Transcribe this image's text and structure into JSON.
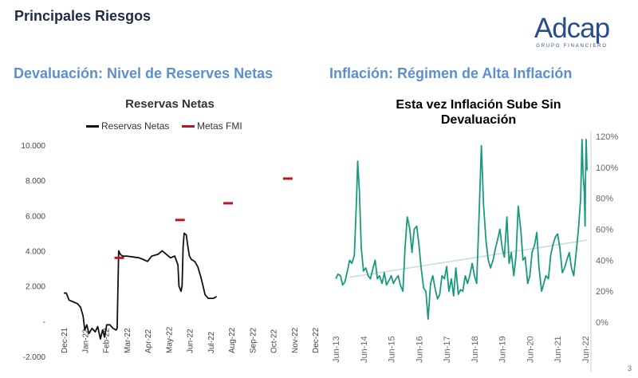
{
  "page": {
    "title": "Principales Riesgos",
    "logo_text": "Adcap",
    "logo_subtitle": "GRUPO FINANCIERO",
    "page_number": "3"
  },
  "sections": {
    "left_heading": "Devaluación: Nivel de Reserves Netas",
    "right_heading": "Inflación: Régimen de Alta Inflación"
  },
  "colors": {
    "reserves_line": "#111111",
    "imf_target": "#c0141e",
    "inflation_line": "#1a9a7c",
    "trend_line": "#bfe0d6",
    "heading_blue": "#5b8fd0"
  },
  "chart_data": [
    {
      "type": "line",
      "title": "Reservas Netas",
      "legend": [
        "Reservas Netas",
        "Metas FMI"
      ],
      "ylim": [
        -2000,
        10000
      ],
      "yticks": [
        -2000,
        0,
        2000,
        4000,
        6000,
        8000,
        10000
      ],
      "ytick_labels": [
        "-2.000",
        "-",
        "2.000",
        "4.000",
        "6.000",
        "8.000",
        "10.000"
      ],
      "xlim_months": [
        0,
        12
      ],
      "xticks": [
        0,
        1,
        2,
        3,
        4,
        5,
        6,
        7,
        8,
        9,
        10,
        11,
        12
      ],
      "xtick_labels": [
        "Dec-21",
        "Jan-22",
        "Feb-22",
        "Mar-22",
        "Apr-22",
        "May-22",
        "Jun-22",
        "Jul-22",
        "Aug-22",
        "Sep-22",
        "Oct-22",
        "Nov-22",
        "Dec-22"
      ],
      "series": [
        {
          "name": "Reservas Netas",
          "points": [
            [
              0.0,
              1600
            ],
            [
              0.12,
              1600
            ],
            [
              0.25,
              1200
            ],
            [
              0.45,
              1100
            ],
            [
              0.65,
              1000
            ],
            [
              0.8,
              800
            ],
            [
              0.92,
              300
            ],
            [
              1.0,
              -500
            ],
            [
              1.1,
              -200
            ],
            [
              1.2,
              -700
            ],
            [
              1.35,
              -400
            ],
            [
              1.5,
              -600
            ],
            [
              1.62,
              -300
            ],
            [
              1.75,
              -1000
            ],
            [
              1.85,
              -500
            ],
            [
              1.95,
              -900
            ],
            [
              2.05,
              -200
            ],
            [
              2.2,
              -200
            ],
            [
              2.35,
              -400
            ],
            [
              2.5,
              -500
            ],
            [
              2.55,
              -400
            ],
            [
              2.62,
              4000
            ],
            [
              2.7,
              3800
            ],
            [
              2.8,
              3700
            ],
            [
              3.0,
              3700
            ],
            [
              3.3,
              3650
            ],
            [
              3.6,
              3600
            ],
            [
              3.8,
              3500
            ],
            [
              4.0,
              3400
            ],
            [
              4.2,
              3700
            ],
            [
              4.5,
              3800
            ],
            [
              4.7,
              4000
            ],
            [
              4.9,
              3800
            ],
            [
              5.1,
              3600
            ],
            [
              5.3,
              3700
            ],
            [
              5.45,
              3200
            ],
            [
              5.5,
              2000
            ],
            [
              5.6,
              1700
            ],
            [
              5.65,
              2000
            ],
            [
              5.7,
              4200
            ],
            [
              5.75,
              5000
            ],
            [
              5.85,
              4900
            ],
            [
              5.92,
              4300
            ],
            [
              6.0,
              3700
            ],
            [
              6.1,
              3500
            ],
            [
              6.25,
              3400
            ],
            [
              6.4,
              3100
            ],
            [
              6.55,
              2500
            ],
            [
              6.65,
              2000
            ],
            [
              6.75,
              1500
            ],
            [
              6.9,
              1300
            ],
            [
              7.0,
              1300
            ],
            [
              7.15,
              1300
            ],
            [
              7.3,
              1400
            ]
          ]
        },
        {
          "name": "Metas FMI",
          "points": [
            [
              2.65,
              3600
            ],
            [
              5.55,
              5750
            ],
            [
              7.85,
              6700
            ],
            [
              10.7,
              8100
            ]
          ]
        }
      ]
    },
    {
      "type": "line",
      "title": "Esta vez Inflación Sube Sin",
      "title_line2": "Devaluación",
      "ylim": [
        0,
        120
      ],
      "yticks": [
        0,
        20,
        40,
        60,
        80,
        100,
        120
      ],
      "ytick_labels": [
        "0%",
        "20%",
        "40%",
        "60%",
        "80%",
        "100%",
        "120%"
      ],
      "xlim_years": [
        0,
        9
      ],
      "xticks": [
        0,
        1,
        2,
        3,
        4,
        5,
        6,
        7,
        8,
        9
      ],
      "xtick_labels": [
        "Jun-13",
        "Jun-14",
        "Jun-15",
        "Jun-16",
        "Jun-17",
        "Jun-18",
        "Jun-19",
        "Jun-20",
        "Jun-21",
        "Jun-22"
      ],
      "series": [
        {
          "name": "Inflación",
          "points": [
            [
              0.0,
              28
            ],
            [
              0.08,
              31
            ],
            [
              0.17,
              30
            ],
            [
              0.25,
              24
            ],
            [
              0.33,
              26
            ],
            [
              0.42,
              33
            ],
            [
              0.5,
              40
            ],
            [
              0.58,
              38
            ],
            [
              0.67,
              43
            ],
            [
              0.75,
              80
            ],
            [
              0.79,
              104
            ],
            [
              0.85,
              85
            ],
            [
              0.92,
              48
            ],
            [
              1.0,
              33
            ],
            [
              1.08,
              35
            ],
            [
              1.17,
              30
            ],
            [
              1.25,
              28
            ],
            [
              1.33,
              34
            ],
            [
              1.42,
              40
            ],
            [
              1.5,
              28
            ],
            [
              1.58,
              30
            ],
            [
              1.67,
              25
            ],
            [
              1.75,
              32
            ],
            [
              1.83,
              24
            ],
            [
              1.92,
              27
            ],
            [
              2.0,
              30
            ],
            [
              2.08,
              25
            ],
            [
              2.17,
              28
            ],
            [
              2.25,
              30
            ],
            [
              2.33,
              24
            ],
            [
              2.42,
              20
            ],
            [
              2.5,
              48
            ],
            [
              2.58,
              68
            ],
            [
              2.67,
              60
            ],
            [
              2.75,
              45
            ],
            [
              2.83,
              60
            ],
            [
              2.92,
              62
            ],
            [
              3.0,
              50
            ],
            [
              3.08,
              35
            ],
            [
              3.17,
              22
            ],
            [
              3.25,
              20
            ],
            [
              3.33,
              2
            ],
            [
              3.42,
              25
            ],
            [
              3.5,
              30
            ],
            [
              3.58,
              22
            ],
            [
              3.67,
              15
            ],
            [
              3.75,
              18
            ],
            [
              3.83,
              30
            ],
            [
              3.92,
              28
            ],
            [
              4.0,
              36
            ],
            [
              4.08,
              20
            ],
            [
              4.17,
              28
            ],
            [
              4.25,
              17
            ],
            [
              4.33,
              35
            ],
            [
              4.42,
              18
            ],
            [
              4.5,
              21
            ],
            [
              4.58,
              20
            ],
            [
              4.67,
              30
            ],
            [
              4.75,
              25
            ],
            [
              4.83,
              30
            ],
            [
              4.92,
              38
            ],
            [
              5.0,
              30
            ],
            [
              5.08,
              25
            ],
            [
              5.17,
              70
            ],
            [
              5.25,
              114
            ],
            [
              5.33,
              75
            ],
            [
              5.42,
              52
            ],
            [
              5.5,
              40
            ],
            [
              5.58,
              35
            ],
            [
              5.67,
              40
            ],
            [
              5.75,
              47
            ],
            [
              5.83,
              53
            ],
            [
              5.92,
              60
            ],
            [
              6.0,
              48
            ],
            [
              6.08,
              42
            ],
            [
              6.17,
              68
            ],
            [
              6.25,
              38
            ],
            [
              6.33,
              45
            ],
            [
              6.42,
              30
            ],
            [
              6.5,
              43
            ],
            [
              6.58,
              75
            ],
            [
              6.67,
              60
            ],
            [
              6.75,
              40
            ],
            [
              6.83,
              42
            ],
            [
              6.92,
              25
            ],
            [
              7.0,
              30
            ],
            [
              7.08,
              45
            ],
            [
              7.17,
              50
            ],
            [
              7.25,
              58
            ],
            [
              7.33,
              35
            ],
            [
              7.42,
              20
            ],
            [
              7.5,
              25
            ],
            [
              7.58,
              30
            ],
            [
              7.67,
              28
            ],
            [
              7.75,
              43
            ],
            [
              7.83,
              50
            ],
            [
              7.92,
              55
            ],
            [
              8.0,
              57
            ],
            [
              8.08,
              48
            ],
            [
              8.17,
              32
            ],
            [
              8.25,
              35
            ],
            [
              8.33,
              40
            ],
            [
              8.42,
              45
            ],
            [
              8.5,
              35
            ],
            [
              8.58,
              30
            ],
            [
              8.67,
              45
            ],
            [
              8.75,
              60
            ],
            [
              8.83,
              80
            ],
            [
              8.88,
              118
            ],
            [
              8.92,
              95
            ],
            [
              8.96,
              85
            ],
            [
              8.99,
              62
            ],
            [
              9.0,
              87
            ],
            [
              9.03,
              118
            ],
            [
              9.06,
              98
            ]
          ]
        },
        {
          "name": "Tendencia",
          "points": [
            [
              0.5,
              29
            ],
            [
              9.06,
              53
            ]
          ]
        }
      ]
    }
  ]
}
